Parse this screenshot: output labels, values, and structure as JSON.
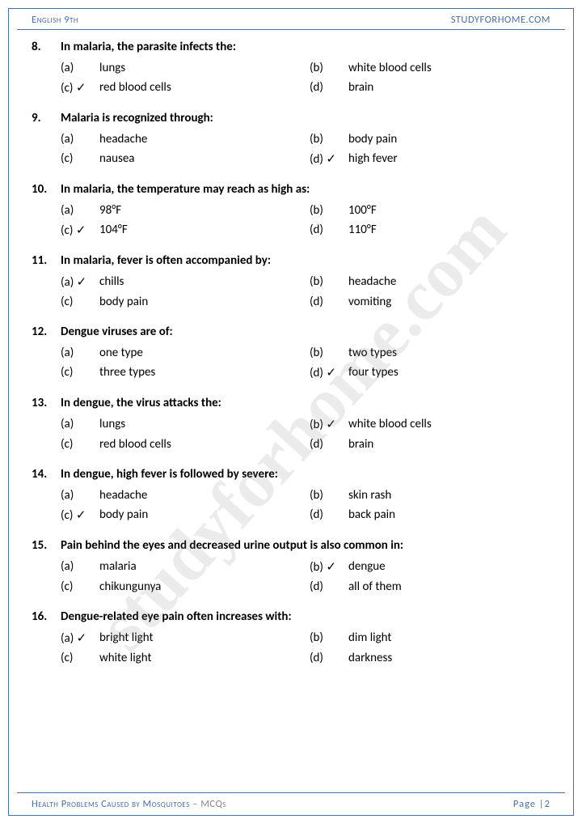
{
  "header": {
    "left": "English 9th",
    "right": "STUDYFORHOME.COM"
  },
  "footer": {
    "title": "Health Problems Caused by Mosquitoes",
    "sub": " – MCQs",
    "page": "Page |2"
  },
  "watermark": "studyforhome.com",
  "questions": [
    {
      "n": "8.",
      "t": "In malaria, the parasite infects the:",
      "o": [
        {
          "l": "(a)",
          "v": "lungs"
        },
        {
          "l": "(b)",
          "v": "white blood cells"
        },
        {
          "l": "(c) ✓",
          "v": "red blood cells"
        },
        {
          "l": "(d)",
          "v": "brain"
        }
      ]
    },
    {
      "n": "9.",
      "t": "Malaria is recognized through:",
      "o": [
        {
          "l": "(a)",
          "v": "headache"
        },
        {
          "l": "(b)",
          "v": "body pain"
        },
        {
          "l": "(c)",
          "v": "nausea"
        },
        {
          "l": "(d) ✓",
          "v": "high fever"
        }
      ]
    },
    {
      "n": "10.",
      "t": "In malaria, the temperature may reach as high as:",
      "o": [
        {
          "l": "(a)",
          "v": "98°F"
        },
        {
          "l": "(b)",
          "v": "100°F"
        },
        {
          "l": "(c) ✓",
          "v": "104°F"
        },
        {
          "l": "(d)",
          "v": "110°F"
        }
      ]
    },
    {
      "n": "11.",
      "t": "In malaria, fever is often accompanied by:",
      "o": [
        {
          "l": "(a) ✓",
          "v": "chills"
        },
        {
          "l": "(b)",
          "v": "headache"
        },
        {
          "l": "(c)",
          "v": "body pain"
        },
        {
          "l": "(d)",
          "v": "vomiting"
        }
      ]
    },
    {
      "n": "12.",
      "t": "Dengue viruses are of:",
      "o": [
        {
          "l": "(a)",
          "v": "one type"
        },
        {
          "l": "(b)",
          "v": "two types"
        },
        {
          "l": "(c)",
          "v": "three types"
        },
        {
          "l": "(d) ✓",
          "v": "four types"
        }
      ]
    },
    {
      "n": "13.",
      "t": "In dengue, the virus attacks the:",
      "o": [
        {
          "l": "(a)",
          "v": "lungs"
        },
        {
          "l": "(b) ✓",
          "v": "white blood cells"
        },
        {
          "l": "(c)",
          "v": "red blood cells"
        },
        {
          "l": "(d)",
          "v": "brain"
        }
      ]
    },
    {
      "n": "14.",
      "t": "In dengue, high fever is followed by severe:",
      "o": [
        {
          "l": "(a)",
          "v": "headache"
        },
        {
          "l": "(b)",
          "v": "skin rash"
        },
        {
          "l": "(c) ✓",
          "v": "body pain"
        },
        {
          "l": "(d)",
          "v": "back pain"
        }
      ]
    },
    {
      "n": "15.",
      "t": "Pain behind the eyes and decreased urine output is also common in:",
      "o": [
        {
          "l": "(a)",
          "v": "malaria"
        },
        {
          "l": "(b) ✓",
          "v": "dengue"
        },
        {
          "l": "(c)",
          "v": "chikungunya"
        },
        {
          "l": "(d)",
          "v": "all of them"
        }
      ]
    },
    {
      "n": "16.",
      "t": "Dengue-related eye pain often increases with:",
      "o": [
        {
          "l": "(a) ✓",
          "v": "bright light"
        },
        {
          "l": "(b)",
          "v": "dim light"
        },
        {
          "l": "(c)",
          "v": "white light"
        },
        {
          "l": "(d)",
          "v": "darkness"
        }
      ]
    }
  ]
}
